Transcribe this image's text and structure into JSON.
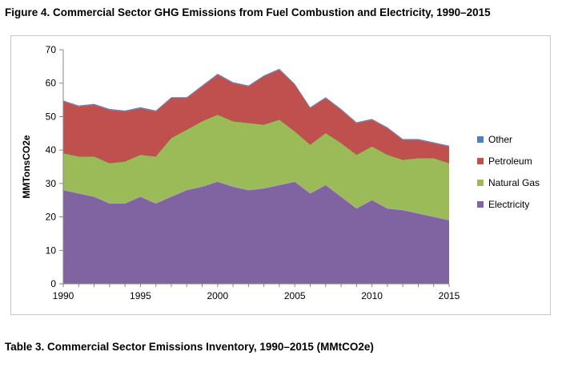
{
  "figure_title": "Figure 4. Commercial Sector GHG Emissions from Fuel Combustion and Electricity, 1990–2015",
  "table_title": "Table 3. Commercial Sector Emissions Inventory, 1990–2015 (MMtCO2e)",
  "chart_data": {
    "type": "area",
    "stacked": true,
    "title": "Figure 4. Commercial Sector GHG Emissions from Fuel Combustion and Electricity, 1990–2015",
    "xlabel": "",
    "ylabel": "MMTonsCO2e",
    "xlim": [
      1990,
      2015
    ],
    "ylim": [
      0,
      70
    ],
    "xticks": [
      "1990",
      "1995",
      "2000",
      "2005",
      "2010",
      "2015"
    ],
    "xtick_values": [
      1990,
      1995,
      2000,
      2005,
      2010,
      2015
    ],
    "yticks": [
      "0",
      "10",
      "20",
      "30",
      "40",
      "50",
      "60",
      "70"
    ],
    "ytick_values": [
      0,
      10,
      20,
      30,
      40,
      50,
      60,
      70
    ],
    "grid": false,
    "legend_position": "right",
    "x": [
      1990,
      1991,
      1992,
      1993,
      1994,
      1995,
      1996,
      1997,
      1998,
      1999,
      2000,
      2001,
      2002,
      2003,
      2004,
      2005,
      2006,
      2007,
      2008,
      2009,
      2010,
      2011,
      2012,
      2013,
      2014,
      2015
    ],
    "series": [
      {
        "name": "Electricity",
        "color": "#8064a2",
        "values": [
          28,
          27,
          26,
          24,
          24,
          26,
          24,
          26,
          28,
          29,
          30.5,
          29,
          28,
          28.5,
          29.5,
          30.5,
          27,
          29.5,
          26,
          22.5,
          25,
          22.5,
          22,
          21,
          20,
          19
        ]
      },
      {
        "name": "Natural Gas",
        "color": "#9bbb59",
        "values": [
          11,
          11,
          12,
          12,
          12.5,
          12.5,
          14,
          17.5,
          18,
          19.5,
          20,
          19.5,
          20,
          19,
          19.5,
          15,
          14.5,
          15.5,
          16,
          16,
          16,
          16,
          15,
          16.5,
          17.5,
          17
        ]
      },
      {
        "name": "Petroleum",
        "color": "#c0504d",
        "values": [
          15.5,
          15,
          15.5,
          16,
          15,
          14,
          13.5,
          12,
          9.5,
          10.5,
          12,
          11.5,
          11,
          14.5,
          15,
          14,
          11,
          10.5,
          10,
          9.5,
          8,
          8,
          6,
          5.5,
          4.5,
          5
        ]
      },
      {
        "name": "Other",
        "color": "#4f81bd",
        "values": [
          0.3,
          0.3,
          0.3,
          0.3,
          0.3,
          0.3,
          0.3,
          0.3,
          0.3,
          0.3,
          0.3,
          0.3,
          0.3,
          0.3,
          0.3,
          0.3,
          0.3,
          0.3,
          0.3,
          0.3,
          0.3,
          0.3,
          0.3,
          0.3,
          0.3,
          0.3
        ]
      }
    ],
    "legend_order": [
      "Other",
      "Petroleum",
      "Natural Gas",
      "Electricity"
    ]
  }
}
